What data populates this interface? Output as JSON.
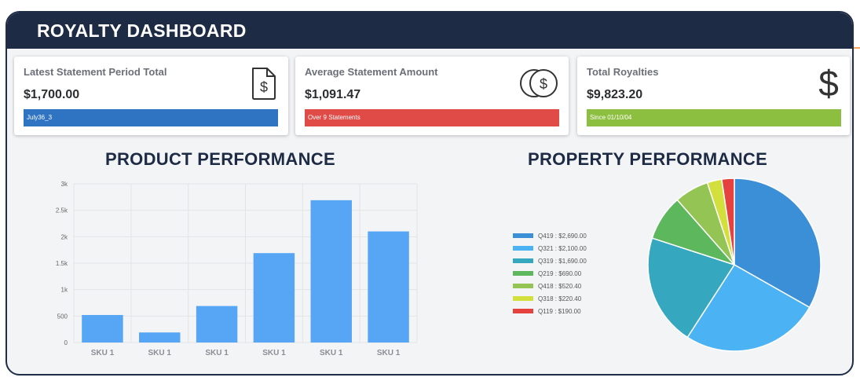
{
  "header": {
    "title": "ROYALTY DASHBOARD"
  },
  "cards": [
    {
      "label": "Latest Statement Period Total",
      "value": "$1,700.00",
      "bar_text": "July36_3",
      "bar_color": "#2e74c3",
      "icon": "document-dollar-icon"
    },
    {
      "label": "Average Statement Amount",
      "value": "$1,091.47",
      "bar_text": "Over 9 Statements",
      "bar_color": "#e04b47",
      "icon": "coins-icon"
    },
    {
      "label": "Total Royalties",
      "value": "$9,823.20",
      "bar_text": "Since 01/10/04",
      "bar_color": "#8cbf3f",
      "icon": "dollar-sign-icon"
    }
  ],
  "product_section": {
    "title": "PRODUCT PERFORMANCE"
  },
  "property_section": {
    "title": "PROPERTY PERFORMANCE"
  },
  "chart_data": [
    {
      "type": "bar",
      "title": "PRODUCT PERFORMANCE",
      "categories": [
        "SKU 1",
        "SKU 1",
        "SKU 1",
        "SKU 1",
        "SKU 1",
        "SKU 1"
      ],
      "values": [
        520,
        190,
        690,
        1690,
        2690,
        2100
      ],
      "y_ticks": [
        "0",
        "500",
        "1k",
        "1.5k",
        "2k",
        "2.5k",
        "3k"
      ],
      "ylim": [
        0,
        3000
      ],
      "grid": true,
      "bar_color": "#56a6f5"
    },
    {
      "type": "pie",
      "title": "PROPERTY PERFORMANCE",
      "legend_position": "left",
      "slices": [
        {
          "label": "Q419 : $2,690.00",
          "value": 2690,
          "color": "#3a8fd6"
        },
        {
          "label": "Q321 : $2,100.00",
          "value": 2100,
          "color": "#4bb3f3"
        },
        {
          "label": "Q319 : $1,690.00",
          "value": 1690,
          "color": "#35a7bf"
        },
        {
          "label": "Q219 : $690.00",
          "value": 690,
          "color": "#5db75c"
        },
        {
          "label": "Q418 : $520.40",
          "value": 520.4,
          "color": "#93c454"
        },
        {
          "label": "Q318 : $220.40",
          "value": 220.4,
          "color": "#d3df3d"
        },
        {
          "label": "Q119 : $190.00",
          "value": 190,
          "color": "#e5413f"
        }
      ]
    }
  ]
}
